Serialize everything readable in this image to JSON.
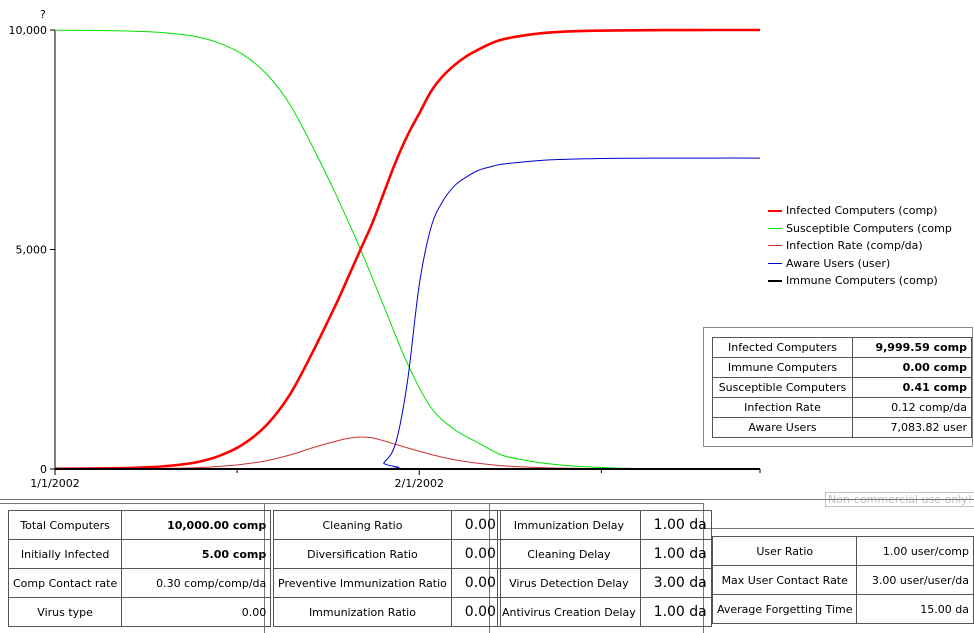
{
  "chart_data": {
    "type": "line",
    "ylabel": "?",
    "ylim": [
      0,
      10000
    ],
    "y_ticks": [
      "10,000",
      "5,000",
      "0"
    ],
    "x_range_days": [
      0,
      60
    ],
    "x_ticks": [
      "1/1/2002",
      "2/1/2002"
    ],
    "grid": false,
    "legend_position": "right",
    "series": [
      {
        "name": "Infected Computers (comp)",
        "color": "#ff0000",
        "width": 2.6,
        "x": [
          0,
          5,
          8,
          10,
          12,
          14,
          16,
          18,
          20,
          22,
          24,
          25,
          26,
          27,
          28,
          29,
          30,
          31,
          32,
          33,
          34,
          35,
          36,
          37,
          38,
          40,
          42,
          44,
          46,
          48,
          52,
          56,
          60
        ],
        "y": [
          5,
          15,
          40,
          80,
          150,
          300,
          560,
          1000,
          1700,
          2700,
          3800,
          4400,
          5000,
          5600,
          6300,
          7000,
          7600,
          8100,
          8600,
          8950,
          9200,
          9400,
          9550,
          9680,
          9780,
          9880,
          9940,
          9970,
          9985,
          9992,
          9997,
          9999,
          10000
        ]
      },
      {
        "name": "Susceptible Computers (comp",
        "color": "#00e000",
        "width": 1,
        "x": [
          0,
          5,
          8,
          10,
          12,
          14,
          16,
          18,
          20,
          22,
          24,
          26,
          28,
          30,
          32,
          34,
          36,
          38,
          40,
          42,
          44,
          46,
          48,
          50,
          52,
          56,
          60
        ],
        "y": [
          9995,
          9985,
          9960,
          9920,
          9850,
          9700,
          9440,
          9000,
          8300,
          7300,
          6200,
          5000,
          3700,
          2400,
          1400,
          900,
          600,
          320,
          200,
          120,
          70,
          40,
          20,
          10,
          5,
          1,
          0
        ]
      },
      {
        "name": "Infection Rate (comp/da)",
        "color": "#cc3333",
        "width": 1,
        "x": [
          0,
          5,
          8,
          10,
          12,
          14,
          16,
          18,
          20,
          22,
          24,
          25,
          26,
          27,
          28,
          29,
          30,
          32,
          34,
          36,
          38,
          40,
          42,
          44,
          46,
          48,
          52,
          56,
          60
        ],
        "y": [
          0,
          2,
          8,
          15,
          30,
          60,
          110,
          190,
          320,
          490,
          640,
          700,
          730,
          710,
          640,
          560,
          480,
          330,
          210,
          130,
          75,
          45,
          25,
          15,
          8,
          4,
          1,
          0,
          0
        ]
      },
      {
        "name": "Aware Users (user)",
        "color": "#0000cc",
        "width": 1,
        "x": [
          0,
          27,
          28,
          29,
          30,
          31,
          32,
          33,
          34,
          35,
          36,
          37,
          38,
          40,
          42,
          44,
          46,
          48,
          52,
          56,
          60
        ],
        "y": [
          0,
          0,
          150,
          600,
          2000,
          4200,
          5500,
          6100,
          6450,
          6650,
          6800,
          6880,
          6940,
          7000,
          7040,
          7060,
          7070,
          7078,
          7082,
          7083,
          7083
        ]
      },
      {
        "name": "Immune Computers (comp)",
        "color": "#000000",
        "width": 2,
        "x": [
          0,
          60
        ],
        "y": [
          0,
          0
        ]
      }
    ]
  },
  "current_values": [
    {
      "name": "Infected Computers",
      "value": "9,999.59 comp",
      "bold": true
    },
    {
      "name": "Immune Computers",
      "value": "0.00 comp",
      "bold": true
    },
    {
      "name": "Susceptible Computers",
      "value": "0.41 comp",
      "bold": true
    },
    {
      "name": "Infection Rate",
      "value": "0.12 comp/da",
      "bold": false
    },
    {
      "name": "Aware Users",
      "value": "7,083.82 user",
      "bold": false
    }
  ],
  "watermark": "Non-commercial use only!",
  "params_1": [
    {
      "name": "Total Computers",
      "value": "10,000.00 comp",
      "bold": true
    },
    {
      "name": "Initially Infected",
      "value": "5.00 comp",
      "bold": true
    },
    {
      "name": "Comp Contact rate",
      "value": "0.30 comp/comp/da",
      "bold": false
    },
    {
      "name": "Virus type",
      "value": "0.00",
      "bold": false
    }
  ],
  "params_2": [
    {
      "name": "Cleaning Ratio",
      "value": "0.00"
    },
    {
      "name": "Diversification Ratio",
      "value": "0.00"
    },
    {
      "name": "Preventive Immunization Ratio",
      "value": "0.00"
    },
    {
      "name": "Immunization Ratio",
      "value": "0.00"
    }
  ],
  "params_3": [
    {
      "name": "Immunization Delay",
      "value": "1.00 da"
    },
    {
      "name": "Cleaning Delay",
      "value": "1.00 da"
    },
    {
      "name": "Virus Detection Delay",
      "value": "3.00 da"
    },
    {
      "name": "Antivirus Creation Delay",
      "value": "1.00 da"
    }
  ],
  "params_4": [
    {
      "name": "User Ratio",
      "value": "1.00 user/comp"
    },
    {
      "name": "Max User Contact Rate",
      "value": "3.00 user/user/da"
    },
    {
      "name": "Average Forgetting Time",
      "value": "15.00 da"
    }
  ]
}
